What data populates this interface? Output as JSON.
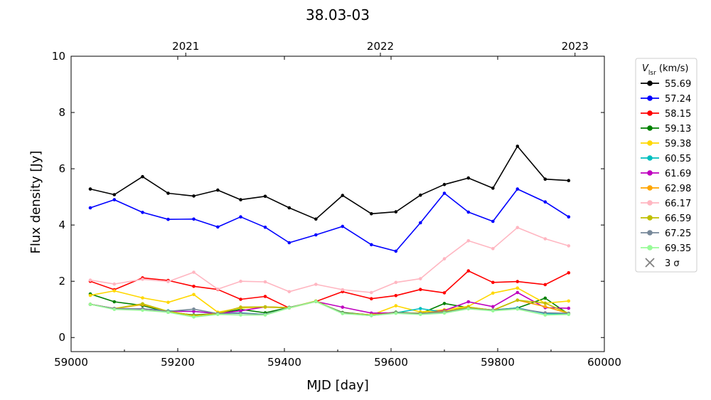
{
  "chart_data": {
    "type": "line",
    "title": "38.03-03",
    "xlabel": "MJD [day]",
    "ylabel": "Flux density [Jy]",
    "xlim": [
      59000,
      60000
    ],
    "ylim": [
      -0.5,
      10
    ],
    "x_ticks": [
      "59000",
      "59200",
      "59400",
      "59600",
      "59800",
      "60000"
    ],
    "y_ticks": [
      "0",
      "2",
      "4",
      "6",
      "8",
      "10"
    ],
    "top_axis": {
      "label_values": [
        59215,
        59580,
        59945
      ],
      "labels": [
        "2021",
        "2022",
        "2023"
      ]
    },
    "grid": false,
    "legend": {
      "placement": "outside-right",
      "title_main": "V",
      "title_sub": "lsr",
      "title_unit": " (km/s)",
      "extra_entry": {
        "label": "3 σ",
        "marker": "x",
        "color": "#808080"
      }
    },
    "x": [
      59036,
      59081,
      59134,
      59182,
      59230,
      59275,
      59318,
      59364,
      59409,
      59459,
      59509,
      59563,
      59609,
      59655,
      59700,
      59745,
      59791,
      59837,
      59889,
      59933
    ],
    "series": [
      {
        "name": "55.69",
        "color": "#000000",
        "values": [
          5.28,
          5.08,
          5.72,
          5.13,
          5.03,
          5.24,
          4.9,
          5.02,
          4.61,
          4.21,
          5.05,
          4.4,
          4.47,
          5.06,
          5.44,
          5.67,
          5.31,
          6.8,
          5.63,
          5.58
        ]
      },
      {
        "name": "57.24",
        "color": "#0000ff",
        "values": [
          4.61,
          4.9,
          4.45,
          4.2,
          4.21,
          3.93,
          4.29,
          3.92,
          3.37,
          3.65,
          3.95,
          3.3,
          3.07,
          4.08,
          5.13,
          4.46,
          4.13,
          5.28,
          4.82,
          4.29
        ]
      },
      {
        "name": "58.15",
        "color": "#ff0000",
        "values": [
          2.0,
          1.7,
          2.12,
          2.03,
          1.82,
          1.71,
          1.36,
          1.46,
          1.05,
          1.28,
          1.63,
          1.38,
          1.49,
          1.71,
          1.59,
          2.37,
          1.96,
          1.99,
          1.88,
          2.3
        ]
      },
      {
        "name": "59.13",
        "color": "#008000",
        "values": [
          1.55,
          1.27,
          1.14,
          0.9,
          0.8,
          0.85,
          1.0,
          0.88,
          1.07,
          1.28,
          0.89,
          0.8,
          0.9,
          0.85,
          1.21,
          1.06,
          0.98,
          1.05,
          1.4,
          0.83
        ]
      },
      {
        "name": "59.38",
        "color": "#ffd700",
        "values": [
          1.5,
          1.66,
          1.41,
          1.25,
          1.53,
          0.9,
          1.05,
          1.08,
          1.05,
          1.28,
          0.87,
          0.8,
          1.13,
          0.91,
          0.99,
          1.11,
          1.58,
          1.76,
          1.22,
          1.3
        ]
      },
      {
        "name": "60.55",
        "color": "#00bfbf",
        "values": [
          1.18,
          1.03,
          1.02,
          0.95,
          0.93,
          0.85,
          0.88,
          0.82,
          1.06,
          1.28,
          0.87,
          0.78,
          0.88,
          1.03,
          0.9,
          1.05,
          0.97,
          1.05,
          0.85,
          0.83
        ]
      },
      {
        "name": "61.69",
        "color": "#bf00bf",
        "values": [
          1.18,
          1.03,
          1.02,
          0.93,
          0.93,
          0.85,
          0.95,
          1.09,
          1.06,
          1.28,
          1.08,
          0.87,
          0.88,
          0.85,
          0.96,
          1.27,
          1.1,
          1.6,
          1.06,
          1.04
        ]
      },
      {
        "name": "62.98",
        "color": "#ffa500",
        "values": [
          1.18,
          1.03,
          1.17,
          0.93,
          0.78,
          0.85,
          1.08,
          1.09,
          1.06,
          1.28,
          0.87,
          0.8,
          0.88,
          0.87,
          0.93,
          1.08,
          0.97,
          1.33,
          1.1,
          0.86
        ]
      },
      {
        "name": "66.17",
        "color": "#ffb6c1",
        "values": [
          2.04,
          1.9,
          2.07,
          1.99,
          2.32,
          1.72,
          2.0,
          1.98,
          1.63,
          1.89,
          1.7,
          1.6,
          1.96,
          2.09,
          2.8,
          3.44,
          3.16,
          3.91,
          3.51,
          3.26
        ]
      },
      {
        "name": "66.59",
        "color": "#bfbf00",
        "values": [
          1.18,
          1.03,
          1.2,
          0.93,
          0.78,
          0.85,
          1.08,
          1.09,
          1.06,
          1.3,
          0.87,
          0.8,
          0.88,
          0.87,
          0.93,
          1.08,
          0.97,
          1.33,
          1.22,
          0.86
        ]
      },
      {
        "name": "67.25",
        "color": "#778899",
        "values": [
          1.18,
          1.03,
          1.02,
          0.93,
          1.01,
          0.85,
          0.86,
          0.82,
          1.06,
          1.28,
          0.87,
          0.78,
          0.88,
          0.85,
          0.9,
          1.03,
          0.97,
          1.03,
          0.88,
          0.86
        ]
      },
      {
        "name": "69.35",
        "color": "#98fb98",
        "values": [
          1.18,
          1.0,
          0.97,
          0.9,
          0.73,
          0.82,
          0.8,
          0.8,
          1.05,
          1.28,
          0.85,
          0.78,
          0.86,
          0.82,
          0.87,
          1.02,
          0.95,
          1.01,
          0.8,
          0.82
        ]
      }
    ]
  }
}
